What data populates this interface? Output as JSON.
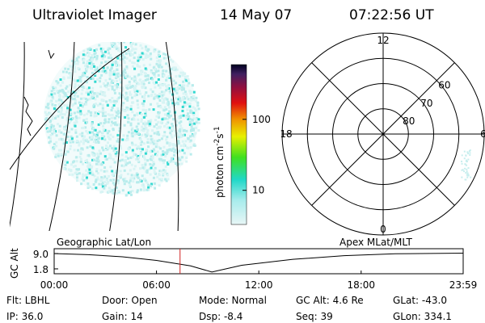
{
  "header": {
    "title": "Ultraviolet Imager",
    "date": "14 May 07",
    "time": "07:22:56 UT"
  },
  "colorbar": {
    "label_parts": [
      "photon cm",
      "-2",
      "s",
      "-1"
    ],
    "log": true,
    "lim": [
      3.3,
      590
    ],
    "ticks": [
      10,
      100
    ]
  },
  "polar": {
    "mlt_labels": [
      "12",
      "18",
      "6",
      "0"
    ],
    "lat_rings": [
      50,
      60,
      70,
      80
    ],
    "lat_labels": [
      60,
      70,
      80
    ]
  },
  "panel_labels": {
    "left": "Geographic Lat/Lon",
    "right": "Apex MLat/MLT"
  },
  "chart_data": {
    "type": "line",
    "ylabel": "GC Alt",
    "x": [
      0,
      2,
      4,
      6,
      8,
      9.25,
      11,
      14,
      17,
      20,
      23.983
    ],
    "series": [
      {
        "name": "GC Alt",
        "color": "#000000",
        "values": [
          9.0,
          8.5,
          7.5,
          5.8,
          3.2,
          0.3,
          3.5,
          6.3,
          8.0,
          8.9,
          9.2
        ]
      }
    ],
    "marker": {
      "x": 7.382,
      "color": "#d02020"
    },
    "xlim": [
      0,
      23.983
    ],
    "xticks": [
      {
        "value": 0,
        "label": "00:00"
      },
      {
        "value": 6,
        "label": "06:00"
      },
      {
        "value": 12,
        "label": "12:00"
      },
      {
        "value": 18,
        "label": "18:00"
      },
      {
        "value": 23.983,
        "label": "23:59"
      }
    ],
    "ylim": [
      -0.5,
      11.3
    ],
    "yticks": [
      {
        "value": 9.0,
        "label": "9.0"
      },
      {
        "value": 1.8,
        "label": "1.8"
      }
    ]
  },
  "footer": [
    [
      "Flt: LBHL",
      "Door: Open",
      "Mode: Normal",
      "GC Alt: 4.6 Re",
      "GLat: -43.0"
    ],
    [
      "IP: 36.0",
      "Gain: 14",
      "Dsp:   -8.4",
      "Seq: 39",
      "GLon: 334.1"
    ]
  ]
}
